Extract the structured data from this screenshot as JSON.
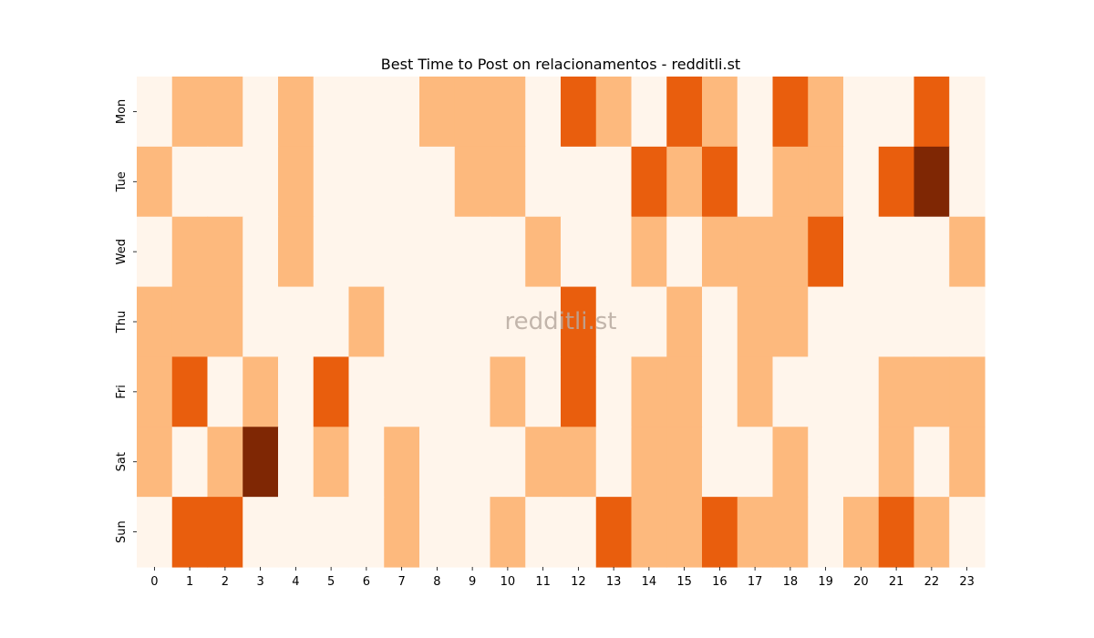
{
  "chart_data": {
    "type": "heatmap",
    "title": "Best Time to Post on relacionamentos - redditli.st",
    "watermark": "redditli.st",
    "xlabel": "",
    "ylabel": "",
    "x": [
      "0",
      "1",
      "2",
      "3",
      "4",
      "5",
      "6",
      "7",
      "8",
      "9",
      "10",
      "11",
      "12",
      "13",
      "14",
      "15",
      "16",
      "17",
      "18",
      "19",
      "20",
      "21",
      "22",
      "23"
    ],
    "y": [
      "Mon",
      "Tue",
      "Wed",
      "Thu",
      "Fri",
      "Sat",
      "Sun"
    ],
    "values": [
      [
        0,
        1,
        1,
        0,
        1,
        0,
        0,
        0,
        1,
        1,
        1,
        0,
        2,
        1,
        0,
        2,
        1,
        0,
        2,
        1,
        0,
        0,
        2,
        0
      ],
      [
        1,
        0,
        0,
        0,
        1,
        0,
        0,
        0,
        0,
        1,
        1,
        0,
        0,
        0,
        2,
        1,
        2,
        0,
        1,
        1,
        0,
        2,
        3,
        0
      ],
      [
        0,
        1,
        1,
        0,
        1,
        0,
        0,
        0,
        0,
        0,
        0,
        1,
        0,
        0,
        1,
        0,
        1,
        1,
        1,
        2,
        0,
        0,
        0,
        1
      ],
      [
        1,
        1,
        1,
        0,
        0,
        0,
        1,
        0,
        0,
        0,
        0,
        0,
        2,
        0,
        0,
        1,
        0,
        1,
        1,
        0,
        0,
        0,
        0,
        0
      ],
      [
        1,
        2,
        0,
        1,
        0,
        2,
        0,
        0,
        0,
        0,
        1,
        0,
        2,
        0,
        1,
        1,
        0,
        1,
        0,
        0,
        0,
        1,
        1,
        1
      ],
      [
        1,
        0,
        1,
        3,
        0,
        1,
        0,
        1,
        0,
        0,
        0,
        1,
        1,
        0,
        1,
        1,
        0,
        0,
        1,
        0,
        0,
        1,
        0,
        1
      ],
      [
        0,
        2,
        2,
        0,
        0,
        0,
        0,
        1,
        0,
        0,
        1,
        0,
        0,
        2,
        1,
        1,
        2,
        1,
        1,
        0,
        1,
        2,
        1,
        0
      ]
    ],
    "colorscale": [
      "#fff5eb",
      "#fdb97d",
      "#e95e0d",
      "#7f2704"
    ],
    "colorbar": false,
    "grid": false
  }
}
